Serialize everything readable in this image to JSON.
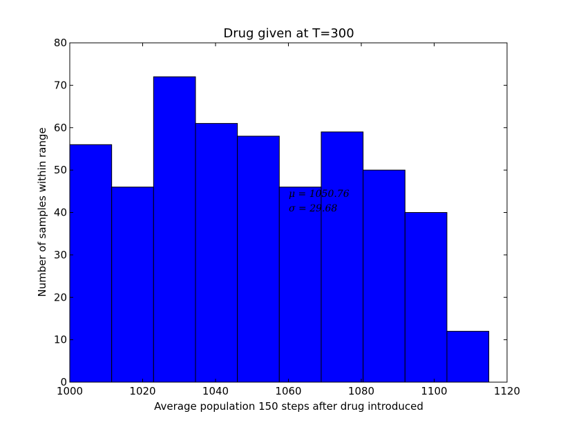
{
  "chart_data": {
    "type": "bar",
    "title": "Drug given at T=300",
    "xlabel": "Average population 150 steps after drug introduced",
    "ylabel": "Number of samples within range",
    "xlim": [
      1000,
      1120
    ],
    "ylim": [
      0,
      80
    ],
    "xticks": [
      1000,
      1020,
      1040,
      1060,
      1080,
      1100,
      1120
    ],
    "yticks": [
      0,
      10,
      20,
      30,
      40,
      50,
      60,
      70,
      80
    ],
    "bin_edges": [
      1000,
      1011.5,
      1023,
      1034.5,
      1046,
      1057.5,
      1069,
      1080.5,
      1092,
      1103.5,
      1115
    ],
    "values": [
      56,
      46,
      72,
      61,
      58,
      46,
      59,
      50,
      40,
      12
    ],
    "bar_color": "#0000ff",
    "edge_color": "#000000",
    "grid": false,
    "annotations": [
      "μ = 1050.76",
      "σ = 29.68"
    ]
  }
}
